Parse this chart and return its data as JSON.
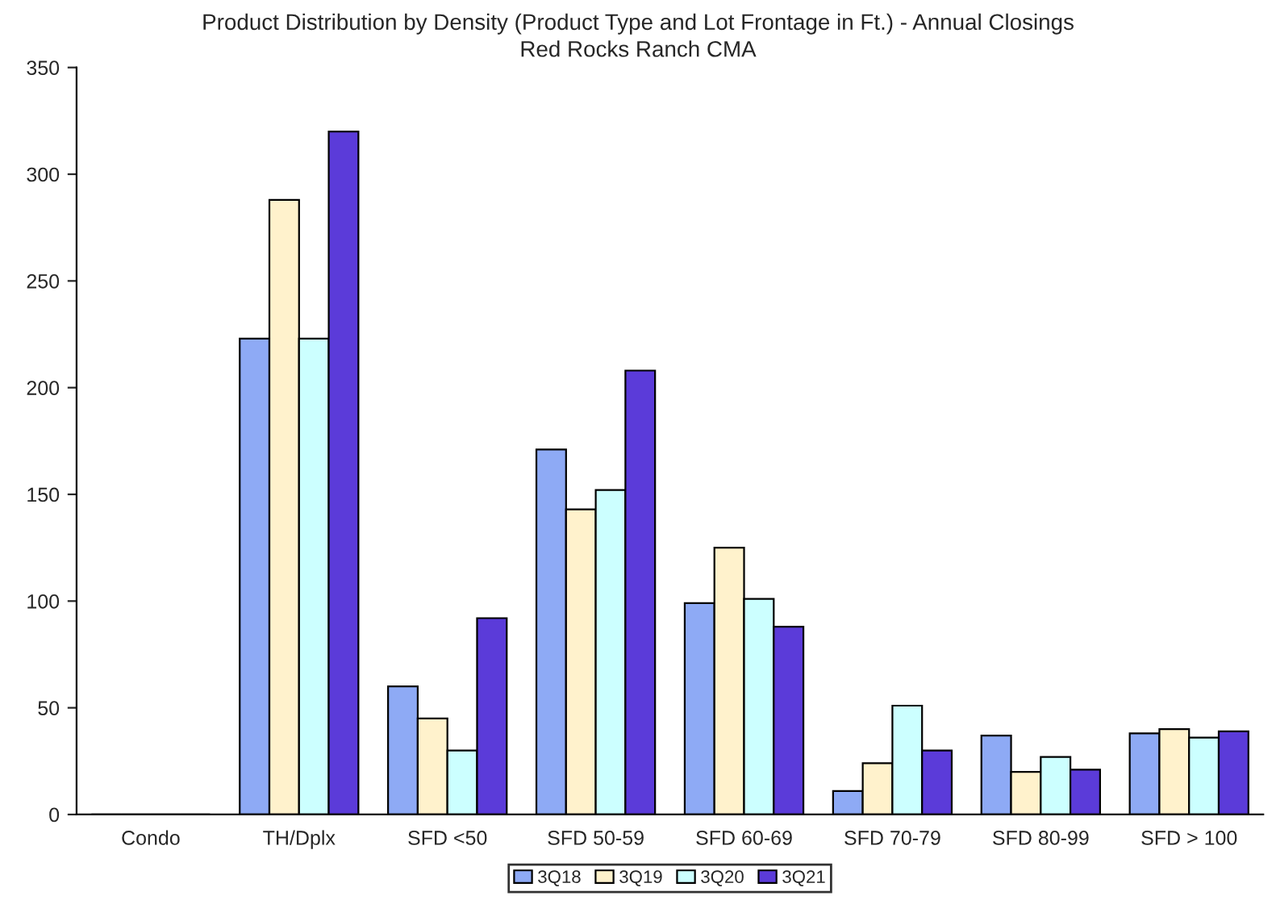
{
  "chart_data": {
    "type": "bar",
    "title": "Product Distribution by Density (Product Type and Lot Frontage in Ft.) - Annual Closings",
    "subtitle": "Red Rocks Ranch CMA",
    "categories": [
      "Condo",
      "TH/Dplx",
      "SFD <50",
      "SFD 50-59",
      "SFD 60-69",
      "SFD 70-79",
      "SFD 80-99",
      "SFD > 100"
    ],
    "series": [
      {
        "name": "3Q18",
        "color": "#8eaaf5",
        "values": [
          0,
          223,
          60,
          171,
          99,
          11,
          37,
          38
        ]
      },
      {
        "name": "3Q19",
        "color": "#fff2cc",
        "values": [
          0,
          288,
          45,
          143,
          125,
          24,
          20,
          40
        ]
      },
      {
        "name": "3Q20",
        "color": "#ccffff",
        "values": [
          0,
          223,
          30,
          152,
          101,
          51,
          27,
          36
        ]
      },
      {
        "name": "3Q21",
        "color": "#5b3bd9",
        "values": [
          0,
          320,
          92,
          208,
          88,
          30,
          21,
          39
        ]
      }
    ],
    "ylim": [
      0,
      350
    ],
    "yticks": [
      0,
      50,
      100,
      150,
      200,
      250,
      300,
      350
    ],
    "grid": false,
    "legend": "bottom"
  }
}
